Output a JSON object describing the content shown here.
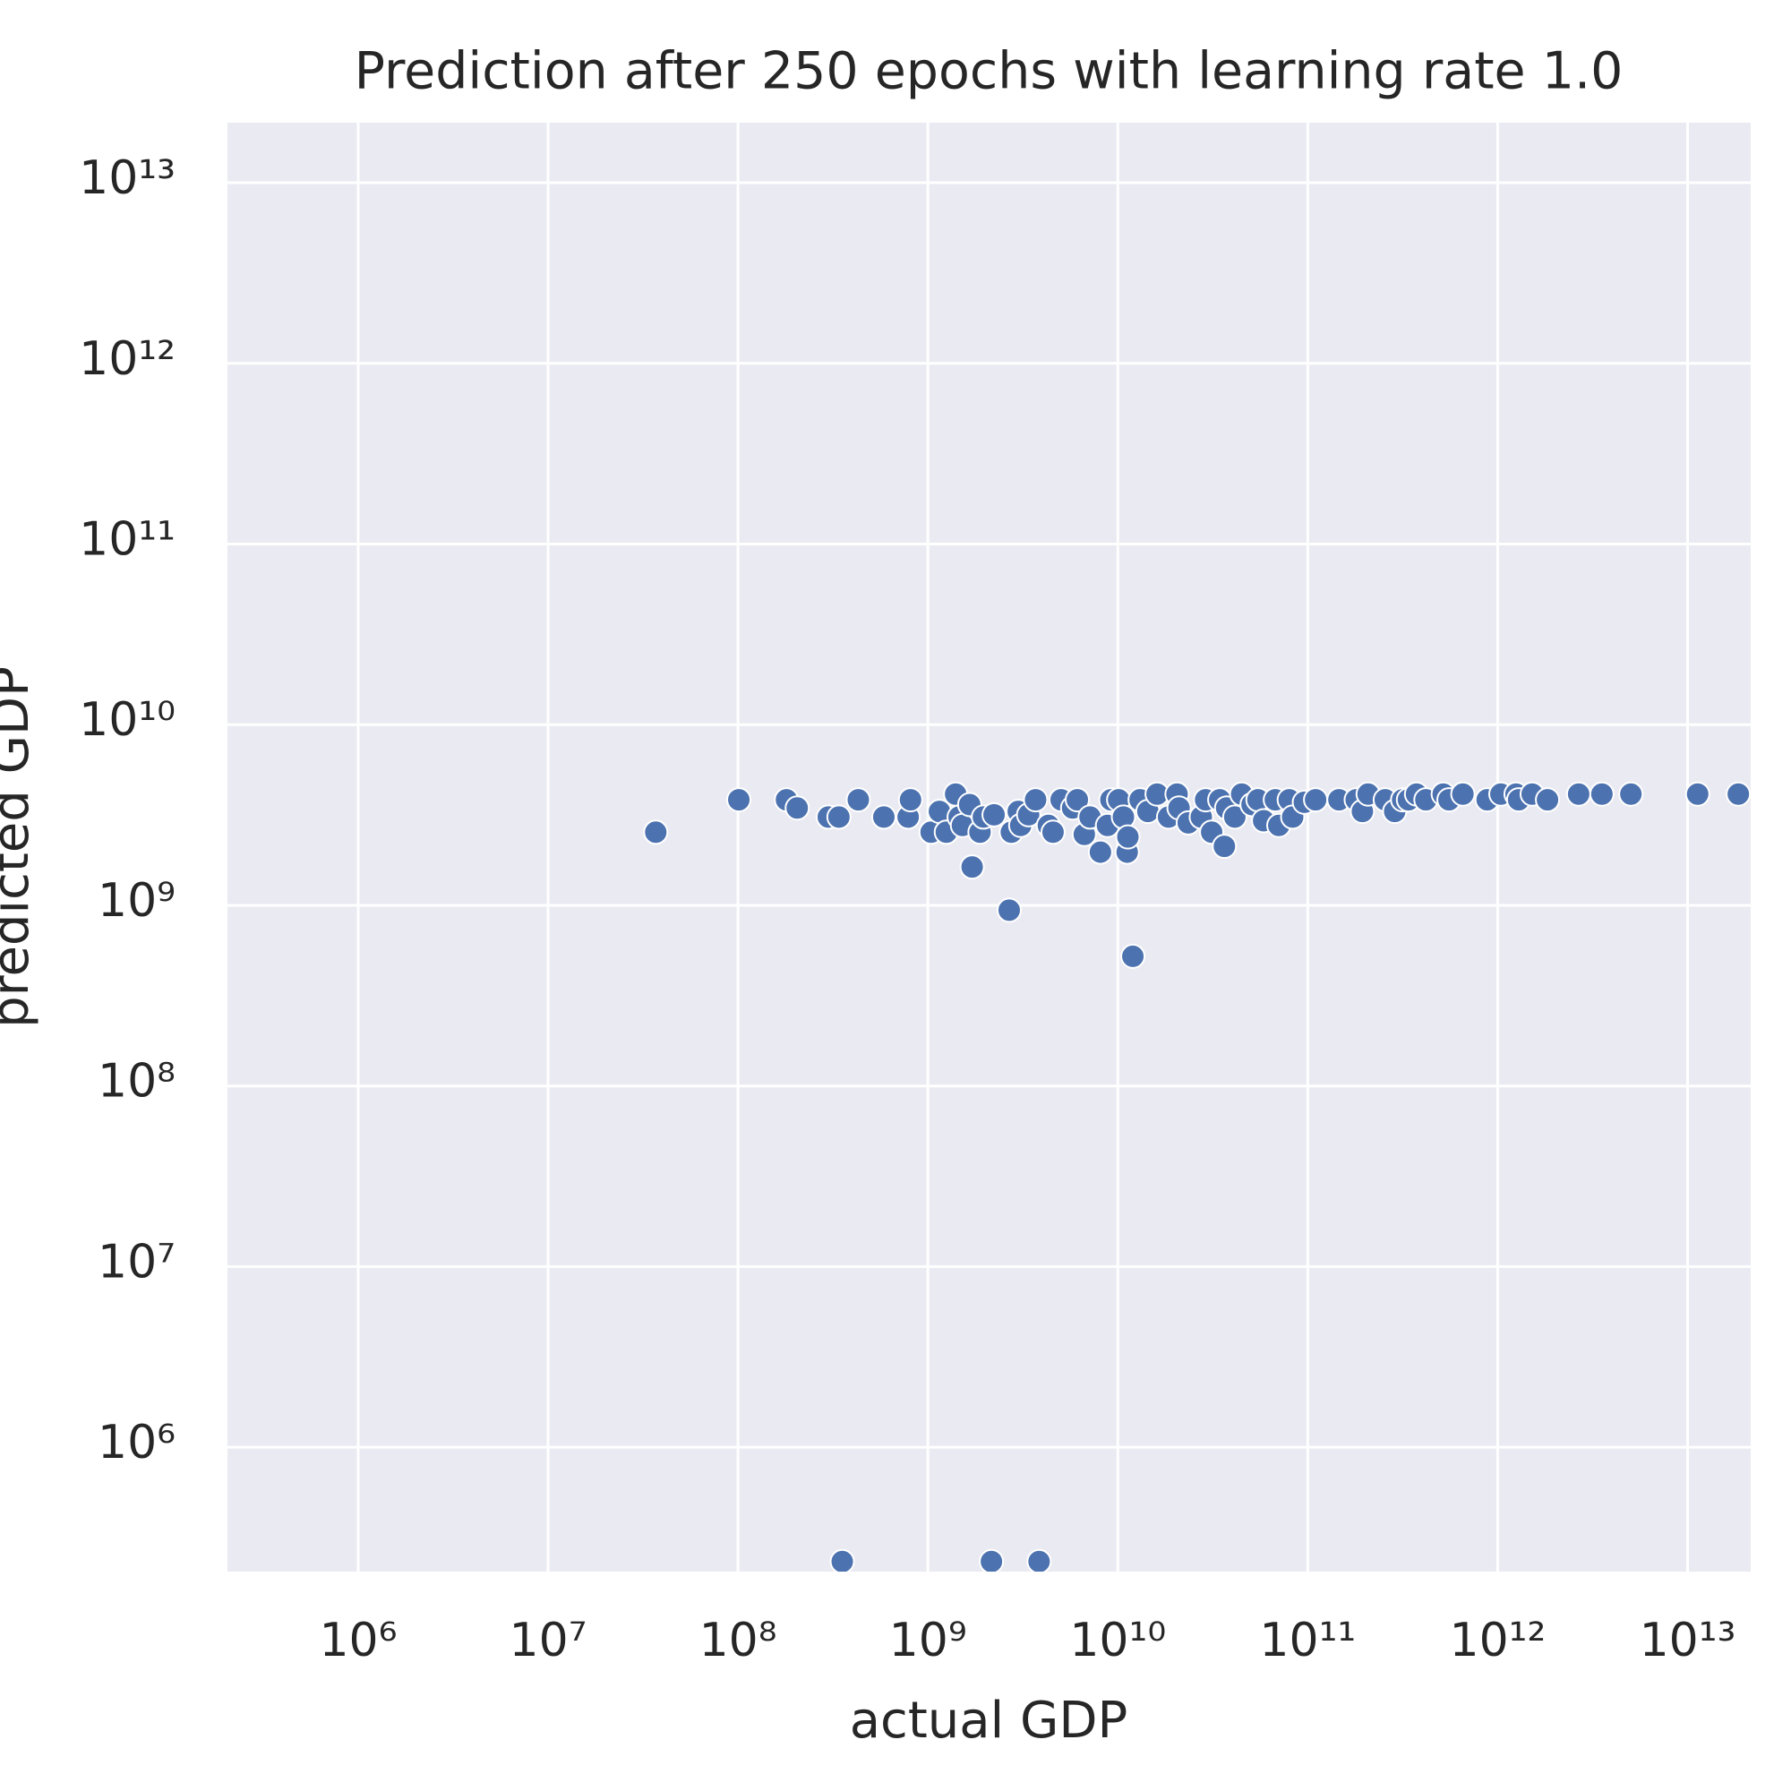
{
  "chart_data": {
    "type": "scatter",
    "title": "Prediction after 250 epochs with learning rate 1.0",
    "x_label": "actual GDP",
    "y_label": "predicted GDP",
    "xscale": "log",
    "yscale": "log",
    "grid": true,
    "background": "#eaeaf2",
    "grid_color": "#ffffff",
    "xlim": [
      205000,
      21500000000000
    ],
    "ylim": [
      205000,
      21500000000000
    ],
    "xticks": [
      {
        "value": 1000000,
        "label": "10⁶"
      },
      {
        "value": 10000000,
        "label": "10⁷"
      },
      {
        "value": 100000000,
        "label": "10⁸"
      },
      {
        "value": 1000000000,
        "label": "10⁹"
      },
      {
        "value": 10000000000,
        "label": "10¹⁰"
      },
      {
        "value": 100000000000,
        "label": "10¹¹"
      },
      {
        "value": 1000000000000,
        "label": "10¹²"
      },
      {
        "value": 10000000000000,
        "label": "10¹³"
      }
    ],
    "yticks": [
      {
        "value": 1000000,
        "label": "10⁶"
      },
      {
        "value": 10000000,
        "label": "10⁷"
      },
      {
        "value": 100000000,
        "label": "10⁸"
      },
      {
        "value": 1000000000,
        "label": "10⁹"
      },
      {
        "value": 10000000000,
        "label": "10¹⁰"
      },
      {
        "value": 100000000000,
        "label": "10¹¹"
      },
      {
        "value": 1000000000000,
        "label": "10¹²"
      },
      {
        "value": 10000000000000,
        "label": "10¹³"
      }
    ],
    "series": [
      {
        "color": "#4c72b0",
        "x": [
          36900000,
          101000000,
          180000000,
          205000000,
          299000000,
          340000000,
          430000000,
          586000000,
          787000000,
          810000000,
          1040000000,
          1150000000,
          1250000000,
          1400000000,
          1460000000,
          1520000000,
          1660000000,
          1710000000,
          1880000000,
          1960000000,
          2230000000,
          2680000000,
          2750000000,
          2990000000,
          3080000000,
          3390000000,
          3690000000,
          4310000000,
          4560000000,
          5030000000,
          5780000000,
          6120000000,
          6660000000,
          7140000000,
          8100000000,
          8820000000,
          9200000000,
          10100000000,
          10700000000,
          11200000000,
          11300000000,
          12000000000,
          13100000000,
          14400000000,
          16100000000,
          18500000000,
          20500000000,
          21000000000,
          23500000000,
          27500000000,
          29000000000,
          31200000000,
          34400000000,
          36400000000,
          37400000000,
          41300000000,
          44900000000,
          50900000000,
          54700000000,
          58600000000,
          67500000000,
          70400000000,
          79900000000,
          83300000000,
          96000000000,
          110000000000,
          146000000000,
          180000000000,
          194000000000,
          208000000000,
          256000000000,
          287000000000,
          316000000000,
          339000000000,
          374000000000,
          419000000000,
          517000000000,
          554000000000,
          656000000000,
          881000000000,
          1040000000000,
          1250000000000,
          1290000000000,
          1520000000000,
          1830000000000,
          2670000000000,
          3540000000000,
          5030000000000,
          11300000000000,
          18500000000000,
          354000000,
          2160000000,
          3850000000
        ],
        "values": [
          2540000000,
          3840000000,
          3840000000,
          3460000000,
          3080000000,
          3080000000,
          3840000000,
          3080000000,
          3080000000,
          3840000000,
          2540000000,
          3310000000,
          2540000000,
          4130000000,
          3080000000,
          2770000000,
          3610000000,
          1630000000,
          2540000000,
          3080000000,
          3170000000,
          940000000,
          2540000000,
          3310000000,
          2770000000,
          3170000000,
          3840000000,
          2770000000,
          2540000000,
          3840000000,
          3460000000,
          3840000000,
          2470000000,
          3080000000,
          1970000000,
          2770000000,
          3840000000,
          3840000000,
          3080000000,
          1970000000,
          2390000000,
          522000000,
          3840000000,
          3310000000,
          4130000000,
          3080000000,
          4130000000,
          3460000000,
          2860000000,
          3080000000,
          3840000000,
          2540000000,
          3840000000,
          2120000000,
          3460000000,
          3080000000,
          4130000000,
          3610000000,
          3840000000,
          2940000000,
          3840000000,
          2770000000,
          3840000000,
          3080000000,
          3720000000,
          3840000000,
          3840000000,
          3840000000,
          3310000000,
          4130000000,
          3840000000,
          3310000000,
          3840000000,
          3840000000,
          4130000000,
          3840000000,
          4130000000,
          3840000000,
          4130000000,
          3840000000,
          4130000000,
          4130000000,
          3840000000,
          4130000000,
          3840000000,
          4130000000,
          4130000000,
          4130000000,
          4130000000,
          4130000000,
          233000,
          233000,
          233000
        ]
      }
    ]
  }
}
